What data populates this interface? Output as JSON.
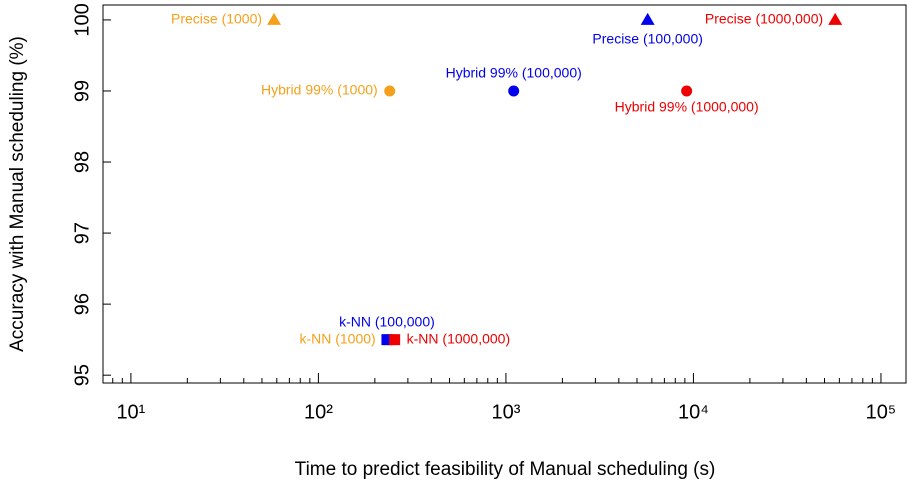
{
  "chart_data": {
    "type": "scatter",
    "x_label": "Time to predict feasibility of Manual scheduling (s)",
    "y_label": "Accuracy with Manual scheduling (%)",
    "xscale": "log",
    "xlim": [
      7.1,
      136000
    ],
    "ylim": [
      94.89,
      100.21
    ],
    "xticks": [
      {
        "value": 10,
        "label": "10¹"
      },
      {
        "value": 100,
        "label": "10²"
      },
      {
        "value": 1000,
        "label": "10³"
      },
      {
        "value": 10000,
        "label": "10⁴"
      },
      {
        "value": 100000,
        "label": "10⁵"
      }
    ],
    "xminorticks": [
      8,
      9,
      20,
      30,
      40,
      50,
      60,
      70,
      80,
      90,
      200,
      300,
      400,
      500,
      600,
      700,
      800,
      900,
      2000,
      3000,
      4000,
      5000,
      6000,
      7000,
      8000,
      9000,
      20000,
      30000,
      40000,
      50000,
      60000,
      70000,
      80000,
      90000
    ],
    "yticks": [
      95,
      96,
      97,
      98,
      99,
      100
    ],
    "points": [
      {
        "label": "Precise (1000)",
        "x": 58,
        "y": 100,
        "color": "#f5a01a",
        "marker": "triangle"
      },
      {
        "label": "Precise (100,000)",
        "x": 5700,
        "y": 100,
        "color": "#0000ee",
        "marker": "triangle"
      },
      {
        "label": "Precise (1000,000)",
        "x": 57000,
        "y": 100,
        "color": "#ee0000",
        "marker": "triangle"
      },
      {
        "label": "Hybrid 99% (1000)",
        "x": 240,
        "y": 99,
        "color": "#f5a01a",
        "marker": "circle"
      },
      {
        "label": "Hybrid 99% (100,000)",
        "x": 1100,
        "y": 99,
        "color": "#0000ee",
        "marker": "circle"
      },
      {
        "label": "Hybrid 99% (1000,000)",
        "x": 9200,
        "y": 99,
        "color": "#ee0000",
        "marker": "circle"
      },
      {
        "label": "k-NN (1000)",
        "x": 240,
        "y": 95.5,
        "color": "#f5a01a",
        "marker": "square"
      },
      {
        "label": "k-NN (100,000)",
        "x": 232,
        "y": 95.5,
        "color": "#0000ee",
        "marker": "square"
      },
      {
        "label": "k-NN (1000,000)",
        "x": 255,
        "y": 95.5,
        "color": "#ee0000",
        "marker": "square"
      }
    ]
  }
}
